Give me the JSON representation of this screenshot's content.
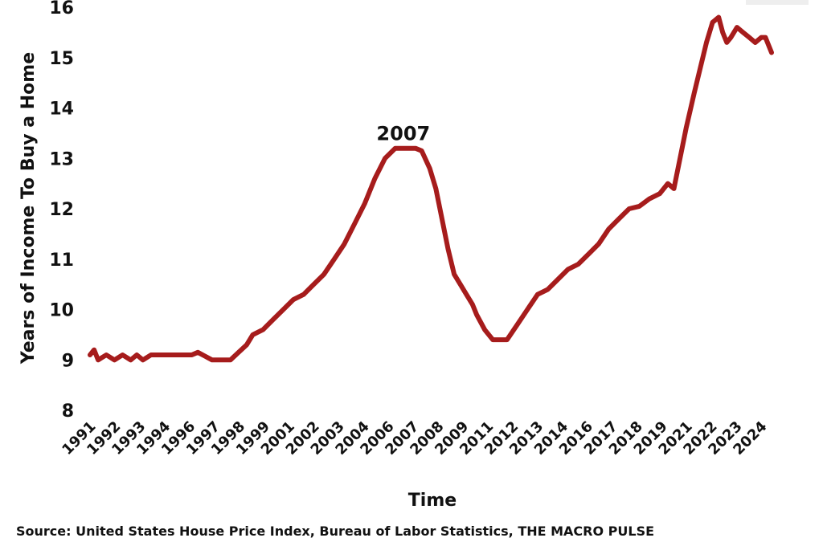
{
  "chart_data": {
    "type": "line",
    "ylabel": "Years of Income To Buy a Home",
    "xlabel": "Time",
    "ylim": [
      8,
      16
    ],
    "y_ticks": [
      "8",
      "9",
      "10",
      "11",
      "12",
      "13",
      "14",
      "15",
      "16"
    ],
    "x_tick_labels": [
      "1991",
      "1992",
      "1993",
      "1994",
      "1996",
      "1997",
      "1998",
      "1999",
      "2001",
      "2002",
      "2003",
      "2004",
      "2006",
      "2007",
      "2008",
      "2009",
      "2011",
      "2012",
      "2013",
      "2014",
      "2016",
      "2017",
      "2018",
      "2019",
      "2021",
      "2022",
      "2023",
      "2024"
    ],
    "grid": false,
    "legend": "none",
    "series_color": "#a61c1c",
    "annotation": {
      "text": "2007",
      "x": 2006.4,
      "y": 13.2
    },
    "series": [
      {
        "x": [
          1991.0,
          1991.2,
          1991.4,
          1991.8,
          1992.2,
          1992.6,
          1993.0,
          1993.3,
          1993.6,
          1994.0,
          1995.0,
          1996.0,
          1996.3,
          1997.0,
          1997.5,
          1997.9,
          1998.3,
          1998.7,
          1999.0,
          1999.5,
          2000.0,
          2000.5,
          2001.0,
          2001.5,
          2002.0,
          2002.5,
          2003.0,
          2003.5,
          2004.0,
          2004.5,
          2005.0,
          2005.5,
          2006.0,
          2006.5,
          2007.0,
          2007.3,
          2007.7,
          2008.0,
          2008.3,
          2008.6,
          2008.9,
          2009.2,
          2009.5,
          2009.8,
          2010.0,
          2010.4,
          2010.8,
          2011.0,
          2011.5,
          2012.0,
          2012.5,
          2013.0,
          2013.5,
          2014.0,
          2014.5,
          2015.0,
          2015.5,
          2016.0,
          2016.5,
          2017.0,
          2017.5,
          2018.0,
          2018.5,
          2019.0,
          2019.4,
          2019.7,
          2020.0,
          2020.3,
          2020.7,
          2021.0,
          2021.3,
          2021.6,
          2021.9,
          2022.1,
          2022.3,
          2022.5,
          2022.8,
          2023.1,
          2023.4,
          2023.7,
          2024.0,
          2024.2,
          2024.5
        ],
        "y": [
          9.1,
          9.2,
          9.0,
          9.1,
          9.0,
          9.1,
          9.0,
          9.1,
          9.0,
          9.1,
          9.1,
          9.1,
          9.15,
          9.0,
          9.0,
          9.0,
          9.15,
          9.3,
          9.5,
          9.6,
          9.8,
          10.0,
          10.2,
          10.3,
          10.5,
          10.7,
          11.0,
          11.3,
          11.7,
          12.1,
          12.6,
          13.0,
          13.2,
          13.2,
          13.2,
          13.15,
          12.8,
          12.4,
          11.8,
          11.2,
          10.7,
          10.5,
          10.3,
          10.1,
          9.9,
          9.6,
          9.4,
          9.4,
          9.4,
          9.7,
          10.0,
          10.3,
          10.4,
          10.6,
          10.8,
          10.9,
          11.1,
          11.3,
          11.6,
          11.8,
          12.0,
          12.05,
          12.2,
          12.3,
          12.5,
          12.4,
          13.0,
          13.6,
          14.3,
          14.8,
          15.3,
          15.7,
          15.8,
          15.5,
          15.3,
          15.4,
          15.6,
          15.5,
          15.4,
          15.3,
          15.4,
          15.4,
          15.1
        ]
      }
    ]
  },
  "source_note": "Source:  United States House Price Index, Bureau of Labor Statistics, THE MACRO PULSE"
}
